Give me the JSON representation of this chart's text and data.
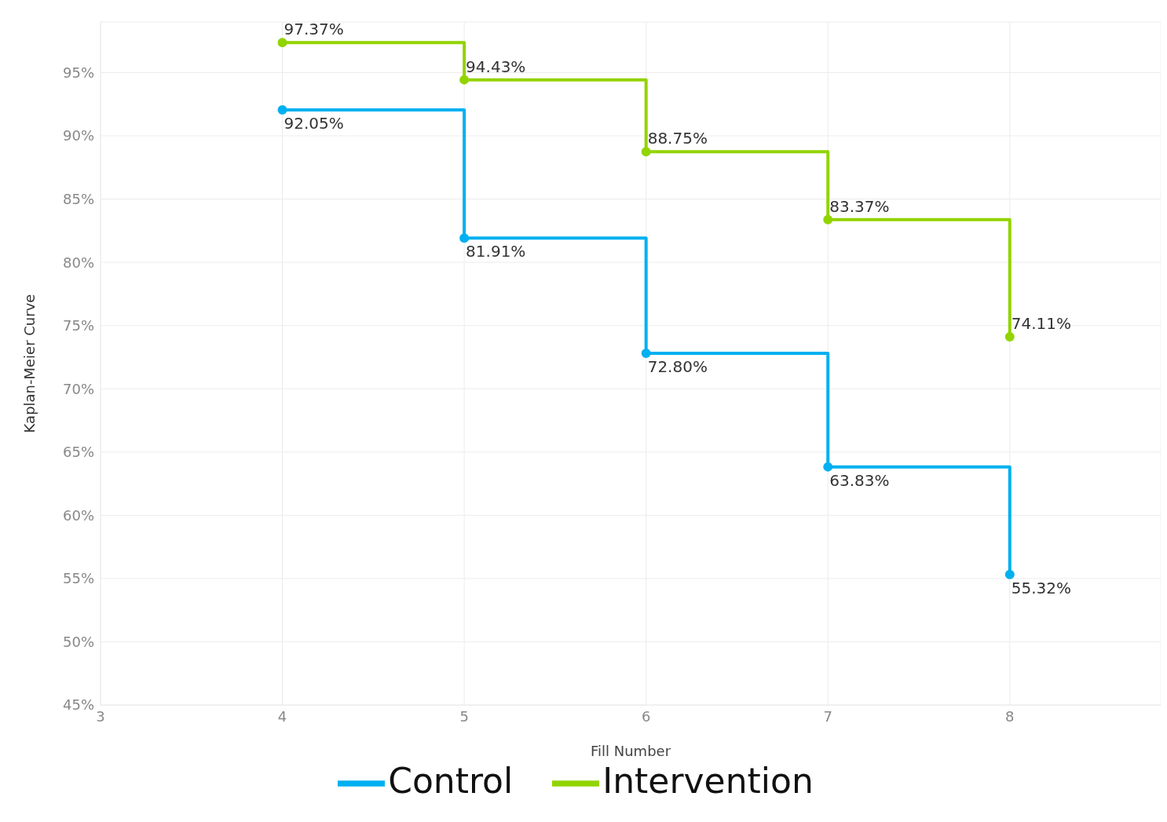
{
  "chart_data": {
    "type": "step",
    "xlabel": "Fill Number",
    "ylabel": "Kaplan-Meier Curve",
    "x": [
      4,
      5,
      6,
      7,
      8
    ],
    "series": [
      {
        "name": "Control",
        "color": "#00b0f0",
        "values": [
          92.05,
          81.91,
          72.8,
          63.83,
          55.32
        ],
        "value_labels": [
          "92.05%",
          "81.91%",
          "72.80%",
          "63.83%",
          "55.32%"
        ]
      },
      {
        "name": "Intervention",
        "color": "#92d400",
        "values": [
          97.37,
          94.43,
          88.75,
          83.37,
          74.11
        ],
        "value_labels": [
          "97.37%",
          "94.43%",
          "88.75%",
          "83.37%",
          "74.11%"
        ]
      }
    ],
    "xlim": [
      3,
      8.83
    ],
    "xticks": [
      3,
      4,
      5,
      6,
      7,
      8
    ],
    "ylim": [
      45,
      99
    ],
    "yticks": [
      {
        "value": 45,
        "label": "45%"
      },
      {
        "value": 50,
        "label": "50%"
      },
      {
        "value": 55,
        "label": "55%"
      },
      {
        "value": 60,
        "label": "60%"
      },
      {
        "value": 65,
        "label": "65%"
      },
      {
        "value": 70,
        "label": "70%"
      },
      {
        "value": 75,
        "label": "75%"
      },
      {
        "value": 80,
        "label": "80%"
      },
      {
        "value": 85,
        "label": "85%"
      },
      {
        "value": 90,
        "label": "90%"
      },
      {
        "value": 95,
        "label": "95%"
      }
    ],
    "grid": true,
    "legend": "bottom",
    "marker": "circle",
    "line_style": "solid"
  }
}
